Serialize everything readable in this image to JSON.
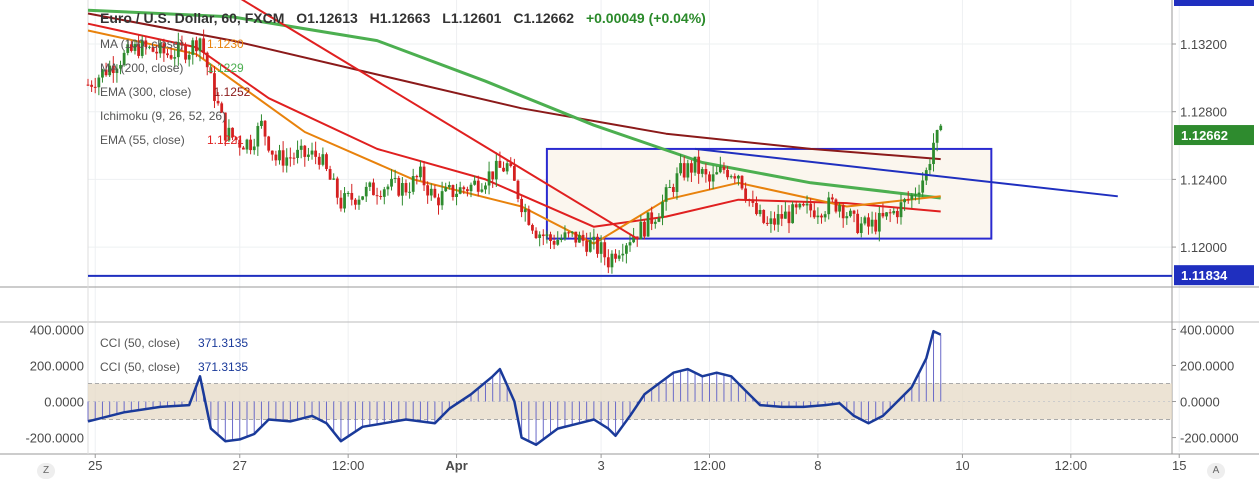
{
  "header": {
    "symbol": "Euro / U.S. Dollar, 60, FXCM",
    "open": "O1.12613",
    "high": "H1.12663",
    "low": "L1.12601",
    "close": "C1.12662",
    "change": "+0.00049 (+0.04%)"
  },
  "legend_main": [
    {
      "label": "MA (100, close)",
      "value": "1.1230",
      "color": "#e8820c"
    },
    {
      "label": "MA (200, close)",
      "value": "1.1229",
      "color": "#4caf50"
    },
    {
      "label": "EMA (300, close)",
      "value": "1.1252",
      "color": "#8b1a1a"
    },
    {
      "label": "Ichimoku (9, 26, 52, 26)",
      "value": "",
      "color": "#9aa"
    },
    {
      "label": "EMA (55, close)",
      "value": "1.1221",
      "color": "#e02020"
    }
  ],
  "legend_cci": [
    {
      "label": "CCI (50, close)",
      "value": "371.3135",
      "color": "#1a3a9a"
    },
    {
      "label": "CCI (50, close)",
      "value": "371.3135",
      "color": "#1a3a9a"
    }
  ],
  "price_axis": {
    "ticks": [
      "1.13200",
      "1.12800",
      "1.12400",
      "1.12000"
    ],
    "current_label": "1.12662",
    "support_label": "1.11834"
  },
  "cci_axis": {
    "ticks": [
      "400.0000",
      "200.0000",
      "0.0000",
      "-200.0000"
    ]
  },
  "time_axis": {
    "ticks": [
      "25",
      "27",
      "12:00",
      "Apr",
      "3",
      "12:00",
      "8",
      "10",
      "12:00",
      "15"
    ]
  },
  "corner_left": "Z",
  "corner_right": "A",
  "colors": {
    "up": "#2e8b2e",
    "down": "#d42020",
    "trendline_red": "#e02020",
    "trendline_blue": "#1f2fbf",
    "box": "#2a2ad0",
    "cci_band": "#e6dac6",
    "cci_line": "#1a3a9a"
  },
  "chart_data": [
    {
      "type": "candlestick",
      "title": "Euro / U.S. Dollar, 60, FXCM",
      "ylim": [
        1.1177,
        1.1346
      ],
      "x_range_bars": [
        0,
        300
      ],
      "x_ticks": [
        {
          "bar": 2,
          "label": "25"
        },
        {
          "bar": 42,
          "label": "27"
        },
        {
          "bar": 72,
          "label": "12:00"
        },
        {
          "bar": 102,
          "label": "Apr"
        },
        {
          "bar": 142,
          "label": "3"
        },
        {
          "bar": 172,
          "label": "12:00"
        },
        {
          "bar": 202,
          "label": "8"
        },
        {
          "bar": 242,
          "label": "10"
        },
        {
          "bar": 272,
          "label": "12:00"
        },
        {
          "bar": 302,
          "label": "15"
        }
      ],
      "close_path": [
        {
          "bar": 0,
          "price": 1.1296
        },
        {
          "bar": 8,
          "price": 1.131
        },
        {
          "bar": 14,
          "price": 1.1318
        },
        {
          "bar": 22,
          "price": 1.1314
        },
        {
          "bar": 28,
          "price": 1.1317
        },
        {
          "bar": 31,
          "price": 1.1324
        },
        {
          "bar": 34,
          "price": 1.1298
        },
        {
          "bar": 38,
          "price": 1.1268
        },
        {
          "bar": 42,
          "price": 1.1262
        },
        {
          "bar": 45,
          "price": 1.1262
        },
        {
          "bar": 48,
          "price": 1.1272
        },
        {
          "bar": 52,
          "price": 1.1252
        },
        {
          "bar": 58,
          "price": 1.1254
        },
        {
          "bar": 64,
          "price": 1.1254
        },
        {
          "bar": 66,
          "price": 1.1244
        },
        {
          "bar": 70,
          "price": 1.1226
        },
        {
          "bar": 76,
          "price": 1.1232
        },
        {
          "bar": 82,
          "price": 1.1236
        },
        {
          "bar": 88,
          "price": 1.1235
        },
        {
          "bar": 92,
          "price": 1.1242
        },
        {
          "bar": 96,
          "price": 1.1228
        },
        {
          "bar": 100,
          "price": 1.1232
        },
        {
          "bar": 106,
          "price": 1.1236
        },
        {
          "bar": 112,
          "price": 1.1244
        },
        {
          "bar": 116,
          "price": 1.1248
        },
        {
          "bar": 120,
          "price": 1.1226
        },
        {
          "bar": 124,
          "price": 1.121
        },
        {
          "bar": 128,
          "price": 1.1204
        },
        {
          "bar": 134,
          "price": 1.1206
        },
        {
          "bar": 138,
          "price": 1.1203
        },
        {
          "bar": 142,
          "price": 1.1198
        },
        {
          "bar": 144,
          "price": 1.1192
        },
        {
          "bar": 146,
          "price": 1.1198
        },
        {
          "bar": 150,
          "price": 1.1206
        },
        {
          "bar": 154,
          "price": 1.1212
        },
        {
          "bar": 158,
          "price": 1.1222
        },
        {
          "bar": 160,
          "price": 1.123
        },
        {
          "bar": 164,
          "price": 1.1244
        },
        {
          "bar": 168,
          "price": 1.1248
        },
        {
          "bar": 172,
          "price": 1.1238
        },
        {
          "bar": 176,
          "price": 1.1246
        },
        {
          "bar": 180,
          "price": 1.1244
        },
        {
          "bar": 184,
          "price": 1.1222
        },
        {
          "bar": 188,
          "price": 1.1212
        },
        {
          "bar": 192,
          "price": 1.1218
        },
        {
          "bar": 196,
          "price": 1.122
        },
        {
          "bar": 200,
          "price": 1.1222
        },
        {
          "bar": 204,
          "price": 1.1224
        },
        {
          "bar": 208,
          "price": 1.1226
        },
        {
          "bar": 212,
          "price": 1.1214
        },
        {
          "bar": 216,
          "price": 1.1212
        },
        {
          "bar": 220,
          "price": 1.1216
        },
        {
          "bar": 224,
          "price": 1.1222
        },
        {
          "bar": 228,
          "price": 1.123
        },
        {
          "bar": 232,
          "price": 1.1244
        },
        {
          "bar": 234,
          "price": 1.1262
        },
        {
          "bar": 236,
          "price": 1.1266
        }
      ],
      "overlays": [
        {
          "name": "EMA (300, close)",
          "color": "#8b1a1a",
          "points": [
            {
              "bar": 0,
              "price": 1.1338
            },
            {
              "bar": 40,
              "price": 1.1322
            },
            {
              "bar": 80,
              "price": 1.1302
            },
            {
              "bar": 120,
              "price": 1.1282
            },
            {
              "bar": 160,
              "price": 1.1267
            },
            {
              "bar": 200,
              "price": 1.1258
            },
            {
              "bar": 236,
              "price": 1.1252
            }
          ]
        },
        {
          "name": "MA (200, close)",
          "color": "#4caf50",
          "points": [
            {
              "bar": 0,
              "price": 1.134
            },
            {
              "bar": 40,
              "price": 1.1336
            },
            {
              "bar": 80,
              "price": 1.1322
            },
            {
              "bar": 110,
              "price": 1.1298
            },
            {
              "bar": 140,
              "price": 1.1272
            },
            {
              "bar": 170,
              "price": 1.125
            },
            {
              "bar": 200,
              "price": 1.1238
            },
            {
              "bar": 236,
              "price": 1.1229
            }
          ]
        },
        {
          "name": "EMA (55, close)",
          "color": "#e02020",
          "points": [
            {
              "bar": 0,
              "price": 1.1332
            },
            {
              "bar": 30,
              "price": 1.1318
            },
            {
              "bar": 50,
              "price": 1.1288
            },
            {
              "bar": 80,
              "price": 1.1258
            },
            {
              "bar": 110,
              "price": 1.124
            },
            {
              "bar": 140,
              "price": 1.1212
            },
            {
              "bar": 160,
              "price": 1.1218
            },
            {
              "bar": 180,
              "price": 1.1228
            },
            {
              "bar": 210,
              "price": 1.1226
            },
            {
              "bar": 236,
              "price": 1.1221
            }
          ]
        },
        {
          "name": "MA (100, close)",
          "color": "#e8820c",
          "points": [
            {
              "bar": 0,
              "price": 1.1328
            },
            {
              "bar": 30,
              "price": 1.1314
            },
            {
              "bar": 60,
              "price": 1.1268
            },
            {
              "bar": 90,
              "price": 1.124
            },
            {
              "bar": 120,
              "price": 1.1224
            },
            {
              "bar": 140,
              "price": 1.1202
            },
            {
              "bar": 160,
              "price": 1.1228
            },
            {
              "bar": 180,
              "price": 1.1238
            },
            {
              "bar": 210,
              "price": 1.1224
            },
            {
              "bar": 236,
              "price": 1.123
            }
          ]
        }
      ],
      "trendlines": [
        {
          "name": "falling-trendline",
          "color": "#e02020",
          "from": {
            "bar": 32,
            "price": 1.136
          },
          "to": {
            "bar": 152,
            "price": 1.1205
          }
        },
        {
          "name": "resistance-trendline",
          "color": "#1f2fbf",
          "from": {
            "bar": 168,
            "price": 1.1258
          },
          "to": {
            "bar": 285,
            "price": 1.123
          }
        },
        {
          "name": "support-line",
          "color": "#1f2fbf",
          "from": {
            "bar": 0,
            "price": 1.1183
          },
          "to": {
            "bar": 300,
            "price": 1.1183
          }
        }
      ],
      "range_box": {
        "bar_start": 127,
        "bar_end": 250,
        "price_top": 1.1258,
        "price_bottom": 1.1205
      },
      "current_price": 1.12662,
      "support_price": 1.11834
    },
    {
      "type": "line+histogram",
      "series_label": "CCI (50, close)",
      "ylim": [
        -280,
        430
      ],
      "band": [
        -100,
        100
      ],
      "points": [
        {
          "bar": 0,
          "value": -110
        },
        {
          "bar": 10,
          "value": -60
        },
        {
          "bar": 20,
          "value": -30
        },
        {
          "bar": 28,
          "value": -20
        },
        {
          "bar": 31,
          "value": 140
        },
        {
          "bar": 34,
          "value": -150
        },
        {
          "bar": 38,
          "value": -220
        },
        {
          "bar": 42,
          "value": -210
        },
        {
          "bar": 46,
          "value": -180
        },
        {
          "bar": 50,
          "value": -100
        },
        {
          "bar": 56,
          "value": -110
        },
        {
          "bar": 62,
          "value": -80
        },
        {
          "bar": 66,
          "value": -120
        },
        {
          "bar": 70,
          "value": -220
        },
        {
          "bar": 76,
          "value": -140
        },
        {
          "bar": 82,
          "value": -120
        },
        {
          "bar": 88,
          "value": -100
        },
        {
          "bar": 96,
          "value": -120
        },
        {
          "bar": 100,
          "value": -40
        },
        {
          "bar": 106,
          "value": 40
        },
        {
          "bar": 112,
          "value": 140
        },
        {
          "bar": 114,
          "value": 180
        },
        {
          "bar": 118,
          "value": 0
        },
        {
          "bar": 120,
          "value": -200
        },
        {
          "bar": 124,
          "value": -240
        },
        {
          "bar": 130,
          "value": -150
        },
        {
          "bar": 136,
          "value": -120
        },
        {
          "bar": 140,
          "value": -100
        },
        {
          "bar": 144,
          "value": -150
        },
        {
          "bar": 146,
          "value": -190
        },
        {
          "bar": 150,
          "value": -80
        },
        {
          "bar": 154,
          "value": 40
        },
        {
          "bar": 158,
          "value": 100
        },
        {
          "bar": 162,
          "value": 160
        },
        {
          "bar": 166,
          "value": 180
        },
        {
          "bar": 170,
          "value": 140
        },
        {
          "bar": 174,
          "value": 160
        },
        {
          "bar": 178,
          "value": 140
        },
        {
          "bar": 182,
          "value": 60
        },
        {
          "bar": 186,
          "value": -20
        },
        {
          "bar": 192,
          "value": -30
        },
        {
          "bar": 198,
          "value": -30
        },
        {
          "bar": 204,
          "value": -20
        },
        {
          "bar": 208,
          "value": -10
        },
        {
          "bar": 212,
          "value": -80
        },
        {
          "bar": 216,
          "value": -120
        },
        {
          "bar": 220,
          "value": -80
        },
        {
          "bar": 224,
          "value": 0
        },
        {
          "bar": 228,
          "value": 80
        },
        {
          "bar": 232,
          "value": 240
        },
        {
          "bar": 234,
          "value": 390
        },
        {
          "bar": 236,
          "value": 371
        }
      ]
    }
  ]
}
